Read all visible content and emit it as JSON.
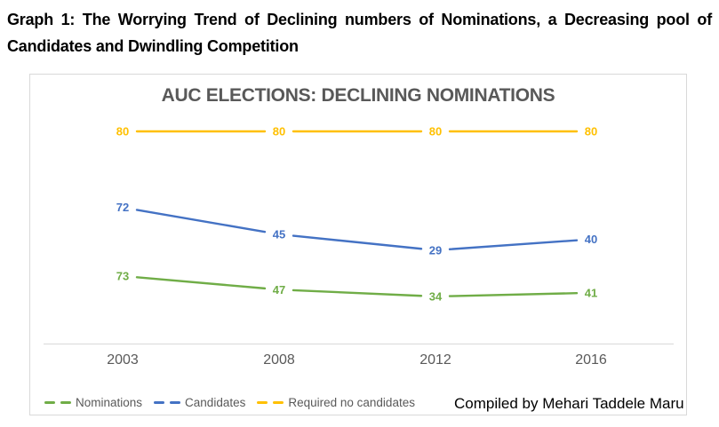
{
  "page": {
    "heading_line1": "Graph 1:  The Worrying Trend of Declining numbers of Nominations, a Decreasing pool of",
    "heading_line2": "Candidates and Dwindling Competition",
    "credit": "Compiled by Mehari Taddele Maru"
  },
  "chart_data": {
    "type": "line",
    "title": "AUC ELECTIONS: DECLINING NOMINATIONS",
    "categories": [
      "2003",
      "2008",
      "2012",
      "2016"
    ],
    "series": [
      {
        "name": "Nominations",
        "color": "#70AD47",
        "values": [
          73,
          47,
          34,
          41
        ]
      },
      {
        "name": "Candidates",
        "color": "#4472C4",
        "values": [
          72,
          45,
          29,
          40
        ]
      },
      {
        "name": "Required no candidates",
        "color": "#FFC000",
        "values": [
          80,
          80,
          80,
          80
        ]
      }
    ],
    "data_labels": true,
    "grid": false,
    "legend_position": "bottom-left",
    "x_axis": {
      "line": true
    },
    "y_axis": {
      "visible": false
    }
  }
}
